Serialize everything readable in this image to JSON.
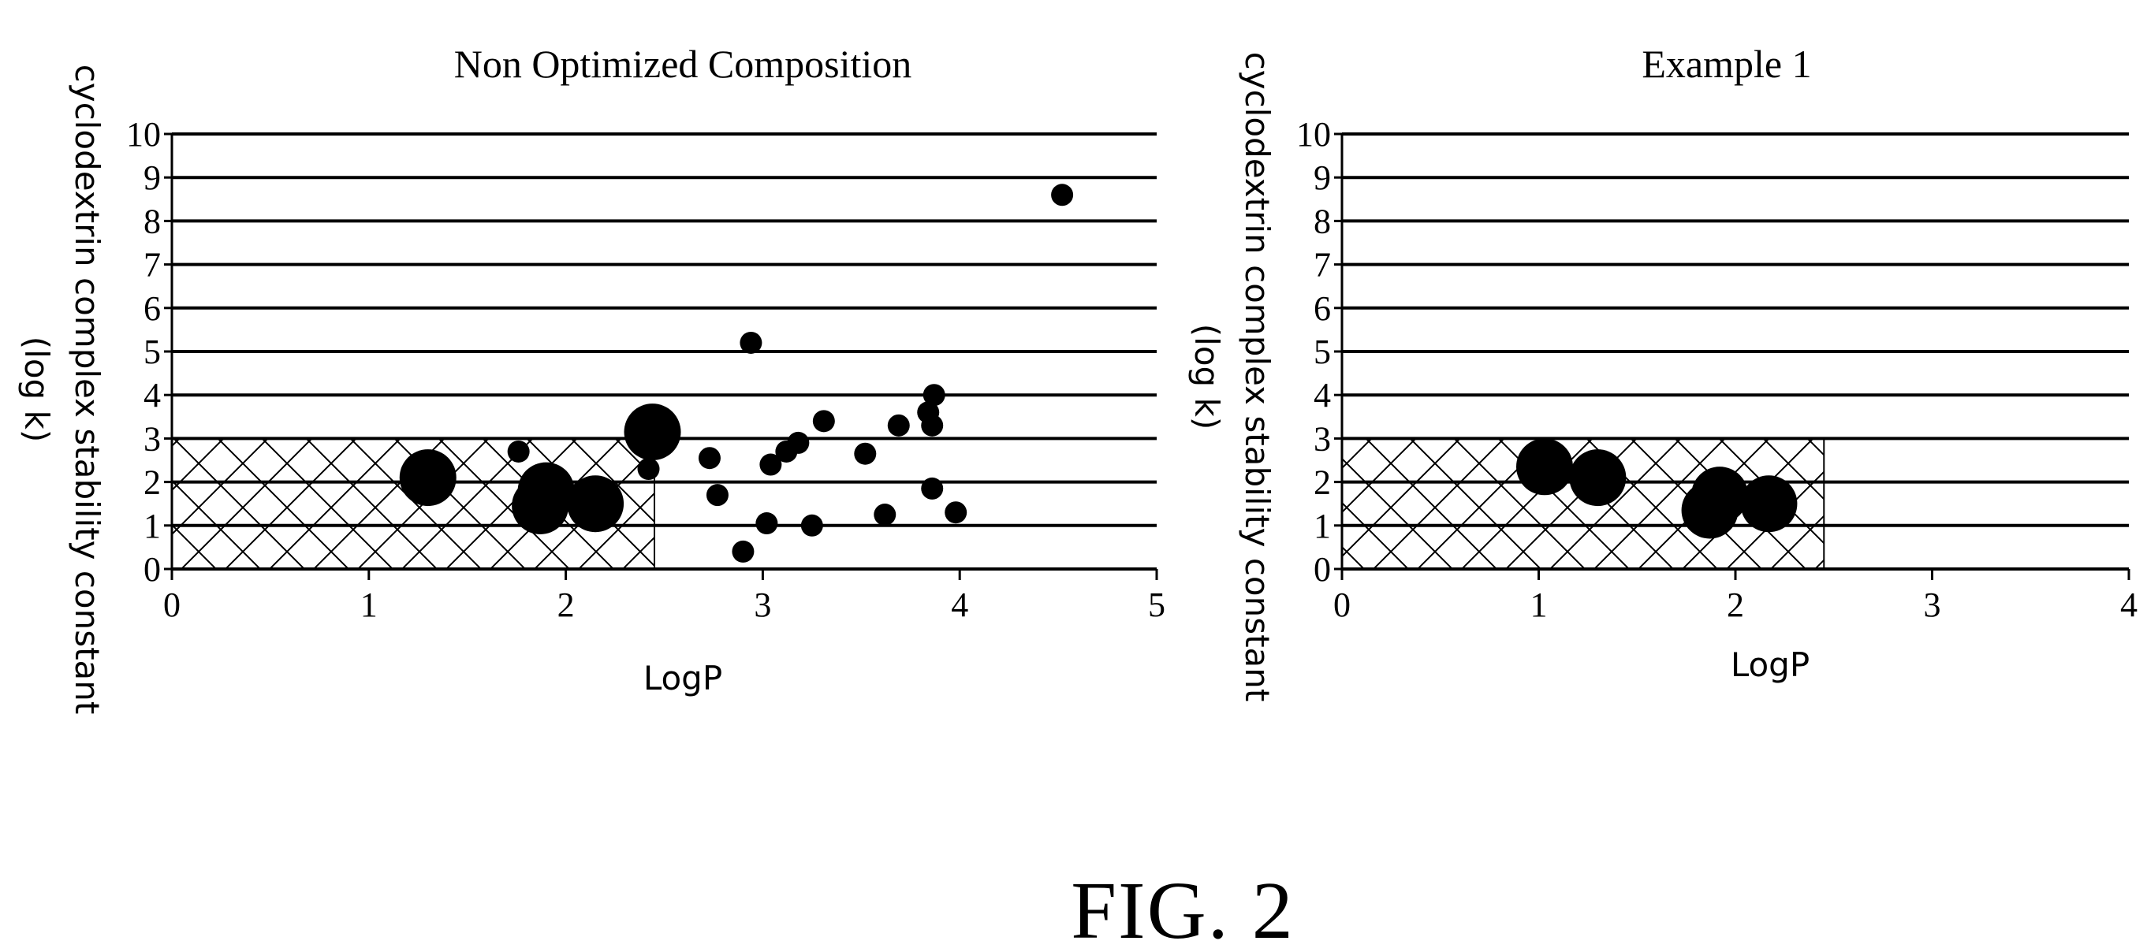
{
  "figure_label": "FIG. 2",
  "chart_data": [
    {
      "type": "scatter",
      "title": "Non Optimized Composition",
      "xlabel": "LogP",
      "ylabel_line1": "cyclodextrin complex stability constant",
      "ylabel_line2": "(log  k)",
      "xlim": [
        0,
        5
      ],
      "ylim": [
        0,
        10
      ],
      "xticks": [
        "0",
        "1",
        "2",
        "3",
        "4",
        "5"
      ],
      "yticks": [
        "0",
        "1",
        "2",
        "3",
        "4",
        "5",
        "6",
        "7",
        "8",
        "9",
        "10"
      ],
      "grid": "horizontal",
      "hatched_region": {
        "x": [
          0,
          2.45
        ],
        "y": [
          0,
          3
        ],
        "pattern": "cross-hatch"
      },
      "points": [
        {
          "x": 1.3,
          "y": 2.1,
          "size": "large"
        },
        {
          "x": 1.76,
          "y": 2.7,
          "size": "small"
        },
        {
          "x": 1.9,
          "y": 1.8,
          "size": "large"
        },
        {
          "x": 1.87,
          "y": 1.45,
          "size": "large"
        },
        {
          "x": 2.15,
          "y": 1.5,
          "size": "large"
        },
        {
          "x": 2.42,
          "y": 2.3,
          "size": "small"
        },
        {
          "x": 2.44,
          "y": 3.15,
          "size": "large"
        },
        {
          "x": 2.73,
          "y": 2.55,
          "size": "small"
        },
        {
          "x": 2.77,
          "y": 1.7,
          "size": "small"
        },
        {
          "x": 2.9,
          "y": 0.4,
          "size": "small"
        },
        {
          "x": 2.94,
          "y": 5.2,
          "size": "small"
        },
        {
          "x": 3.02,
          "y": 1.05,
          "size": "small"
        },
        {
          "x": 3.04,
          "y": 2.4,
          "size": "small"
        },
        {
          "x": 3.12,
          "y": 2.7,
          "size": "small"
        },
        {
          "x": 3.18,
          "y": 2.9,
          "size": "small"
        },
        {
          "x": 3.25,
          "y": 1.0,
          "size": "small"
        },
        {
          "x": 3.31,
          "y": 3.4,
          "size": "small"
        },
        {
          "x": 3.52,
          "y": 2.65,
          "size": "small"
        },
        {
          "x": 3.62,
          "y": 1.25,
          "size": "small"
        },
        {
          "x": 3.69,
          "y": 3.3,
          "size": "small"
        },
        {
          "x": 3.84,
          "y": 3.6,
          "size": "small"
        },
        {
          "x": 3.86,
          "y": 1.85,
          "size": "small"
        },
        {
          "x": 3.86,
          "y": 3.3,
          "size": "small"
        },
        {
          "x": 3.87,
          "y": 4.0,
          "size": "small"
        },
        {
          "x": 3.98,
          "y": 1.3,
          "size": "small"
        },
        {
          "x": 4.52,
          "y": 8.6,
          "size": "small"
        }
      ]
    },
    {
      "type": "scatter",
      "title": "Example 1",
      "xlabel": "LogP",
      "ylabel_line1": "cyclodextrin complex stability constant",
      "ylabel_line2": "(log  k)",
      "xlim": [
        0,
        4
      ],
      "ylim": [
        0,
        10
      ],
      "xticks": [
        "0",
        "1",
        "2",
        "3",
        "4"
      ],
      "yticks": [
        "0",
        "1",
        "2",
        "3",
        "4",
        "5",
        "6",
        "7",
        "8",
        "9",
        "10"
      ],
      "grid": "horizontal",
      "hatched_region": {
        "x": [
          0,
          2.45
        ],
        "y": [
          0,
          3
        ],
        "pattern": "cross-hatch"
      },
      "points": [
        {
          "x": 1.03,
          "y": 2.35,
          "size": "large"
        },
        {
          "x": 1.3,
          "y": 2.1,
          "size": "large"
        },
        {
          "x": 1.92,
          "y": 1.7,
          "size": "large"
        },
        {
          "x": 1.87,
          "y": 1.35,
          "size": "large"
        },
        {
          "x": 2.17,
          "y": 1.5,
          "size": "large"
        }
      ]
    }
  ]
}
